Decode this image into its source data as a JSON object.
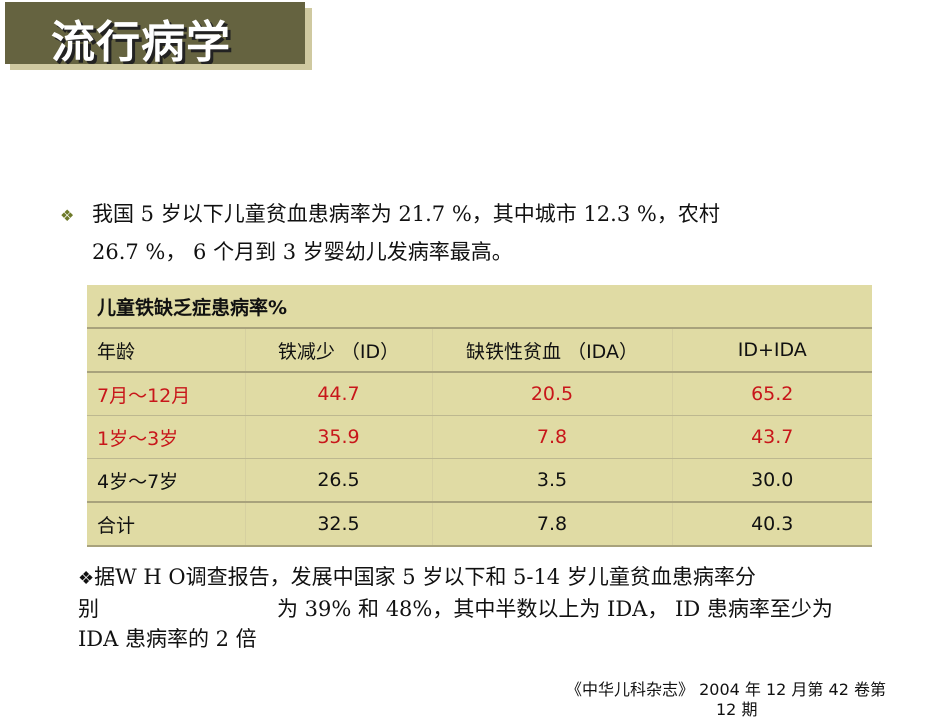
{
  "title": "流行病学",
  "bullet_icon": "diamond-cluster",
  "accent_color": "#656340",
  "highlight_color": "#c8161a",
  "paragraph1": {
    "line1": "我国 5 岁以下儿童贫血患病率为 21.7 %，其中城市 12.3 %，农村",
    "line2": "26.7 %， 6 个月到 3 岁婴幼儿发病率最高。"
  },
  "table": {
    "title": "儿童铁缺乏症患病率%",
    "headers": [
      "年龄",
      "铁减少 （ID）",
      "缺铁性贫血 （IDA）",
      "ID+IDA"
    ],
    "rows": [
      [
        "7月～12月",
        "44.7",
        "20.5",
        "65.2"
      ],
      [
        "1岁～3岁",
        "35.9",
        "7.8",
        "43.7"
      ],
      [
        "4岁～7岁",
        "26.5",
        "3.5",
        "30.0"
      ],
      [
        "合计",
        "32.5",
        "7.8",
        "40.3"
      ]
    ]
  },
  "paragraph2": {
    "line1": "据W H O调查报告，发展中国家 5 岁以下和 5-14 岁儿童贫血患病率分",
    "line2a": "别",
    "line2b": "为 39% 和 48%，其中半数以上为 IDA， ID 患病率至少为",
    "line3": "IDA 患病率的 2 倍"
  },
  "citation": {
    "line1": "《中华儿科杂志》 2004 年 12 月第 42 卷第",
    "line2": "12 期"
  }
}
